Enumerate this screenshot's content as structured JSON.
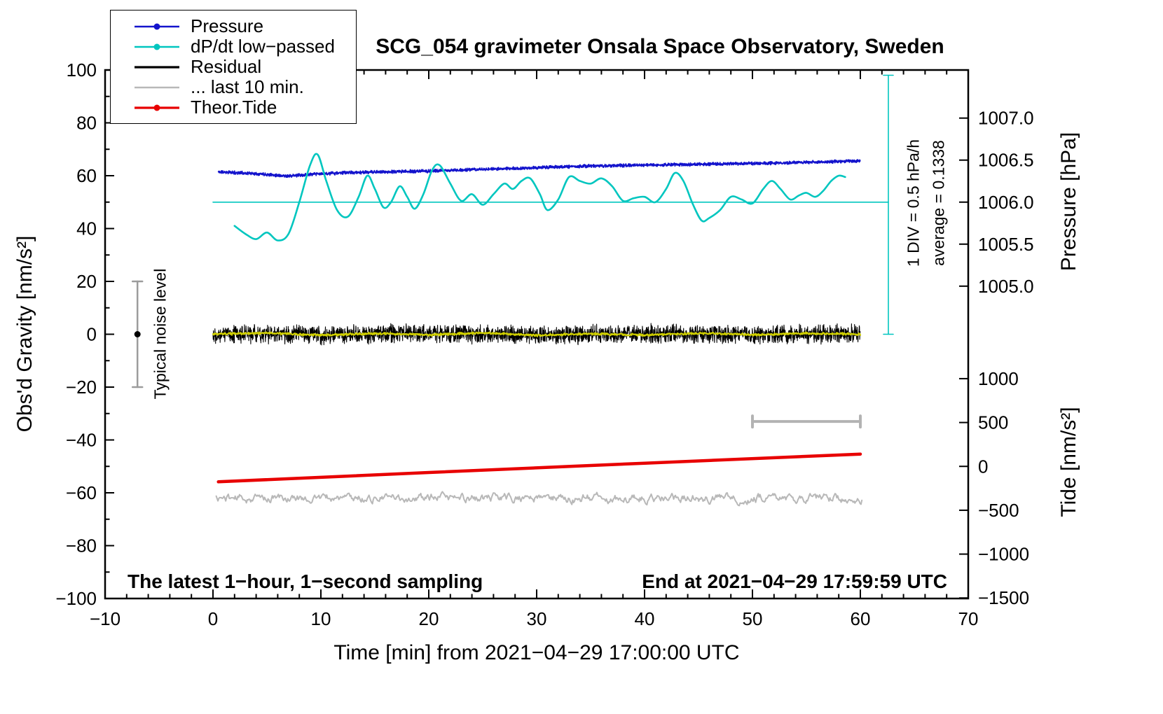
{
  "title": "SCG_054 gravimeter Onsala Space Observatory, Sweden",
  "annotations": {
    "noise_label": "Typical noise level",
    "div_label": "1 DIV = 0.5 hPa/h",
    "average_label": "average = 0.1338",
    "sampling_note": "The latest 1−hour, 1−second sampling",
    "end_note": "End at 2021−04−29 17:59:59 UTC"
  },
  "legend": [
    {
      "label": "Pressure",
      "color": "#1313cc",
      "marker": true,
      "lw": 2.6
    },
    {
      "label": "dP/dt low−passed",
      "color": "#00c6bf",
      "marker": true,
      "lw": 2.6
    },
    {
      "label": "Residual",
      "color": "#000000",
      "marker": false,
      "lw": 3.2
    },
    {
      "label": "... last 10 min.",
      "color": "#b8b8b8",
      "marker": false,
      "lw": 2.6
    },
    {
      "label": "Theor.Tide",
      "color": "#e80000",
      "marker": true,
      "lw": 3.2
    }
  ],
  "chart_data": {
    "type": "line",
    "x_axis": {
      "label": "Time [min] from 2021−04−29 17:00:00 UTC",
      "range": [
        -10,
        70
      ],
      "major_ticks": [
        -10,
        0,
        10,
        20,
        30,
        40,
        50,
        60,
        70
      ],
      "tick_labels": [
        "−10",
        "0",
        "10",
        "20",
        "30",
        "40",
        "50",
        "60",
        "70"
      ],
      "minor_step": 2
    },
    "gravity_axis": {
      "label": "Obs'd Gravity [nm/s²]",
      "range": [
        -100,
        100
      ],
      "major_ticks": [
        100,
        80,
        60,
        40,
        20,
        0,
        -20,
        -40,
        -60,
        -80,
        -100
      ],
      "tick_labels": [
        "100",
        "80",
        "60",
        "40",
        "20",
        "0",
        "−20",
        "−40",
        "−60",
        "−80",
        "−100"
      ],
      "minor_step": 10
    },
    "pressure_axis": {
      "label": "Pressure [hPa]",
      "unit": "hPa",
      "major_ticks": [
        1007.0,
        1006.5,
        1006.0,
        1005.5,
        1005.0
      ],
      "tick_labels": [
        "1007.0",
        "1006.5",
        "1006.0",
        "1005.5",
        "1005.0"
      ],
      "map": {
        "origin_value": 1006.0,
        "origin_gravity": 50,
        "gravity_per_unit": 31.8
      }
    },
    "tide_axis": {
      "label": "Tide [nm/s²]",
      "unit": "nm/s²",
      "major_ticks": [
        1000,
        500,
        0,
        -500,
        -1000,
        -1500
      ],
      "tick_labels": [
        "1000",
        "500",
        "0",
        "−500",
        "−1000",
        "−1500"
      ],
      "map": {
        "origin_value": 0,
        "origin_gravity": -50,
        "gravity_per_unit": 0.0332
      }
    },
    "series": [
      {
        "id": "pressure",
        "name": "Pressure",
        "axis": "pressure",
        "style": "noisy",
        "color": "#1313cc",
        "lw": 1.7,
        "noise": 0.022,
        "step": 0.02,
        "seed": 11,
        "x": [
          0.5,
          4,
          7,
          9,
          12,
          16,
          20,
          25,
          30,
          35,
          40,
          45,
          50,
          54,
          57,
          60
        ],
        "y": [
          1006.36,
          1006.34,
          1006.31,
          1006.33,
          1006.35,
          1006.36,
          1006.37,
          1006.39,
          1006.41,
          1006.43,
          1006.44,
          1006.45,
          1006.46,
          1006.47,
          1006.48,
          1006.49
        ]
      },
      {
        "id": "dpdt",
        "name": "dP/dt low−passed",
        "axis": "gravity",
        "style": "smooth",
        "color": "#00c6bf",
        "lw": 2.6,
        "x": [
          2,
          3,
          4,
          5,
          6,
          7,
          8,
          9,
          9.7,
          10.5,
          11.5,
          12.5,
          13.5,
          14.3,
          15,
          15.8,
          16.5,
          17.3,
          18,
          18.7,
          19.5,
          20.3,
          21,
          22,
          23,
          24,
          25,
          26,
          27,
          27.8,
          28.6,
          29.4,
          30.3,
          31,
          32,
          33,
          34,
          35,
          36,
          37,
          38,
          39,
          40,
          41,
          42,
          42.8,
          43.6,
          44.5,
          45.3,
          46,
          47,
          48,
          49,
          50,
          51,
          51.8,
          52.6,
          53.5,
          54.3,
          55,
          55.8,
          56.5,
          57.3,
          58,
          58.6
        ],
        "y": [
          41,
          38,
          36,
          38.5,
          35.5,
          38,
          50,
          64,
          68,
          58,
          47,
          44.5,
          52,
          60,
          55,
          48,
          50,
          56,
          52,
          47.5,
          53,
          62,
          64,
          57,
          50.5,
          53,
          49,
          53,
          57,
          55,
          58,
          59,
          53,
          47,
          51,
          59.5,
          58,
          57,
          59,
          56,
          50.5,
          51.5,
          52,
          50,
          55,
          61,
          58,
          49,
          43,
          44,
          47,
          52,
          51,
          49.5,
          55,
          58,
          55,
          51,
          52.5,
          53.5,
          52,
          54,
          58,
          60,
          59.5
        ]
      },
      {
        "id": "residual",
        "name": "Residual",
        "axis": "gravity",
        "style": "noisy",
        "color": "#000000",
        "lw": 1.1,
        "noise": 4.0,
        "step": 0.02,
        "seed": 22,
        "x": [
          0,
          10,
          20,
          30,
          40,
          50,
          60
        ],
        "y": [
          0.3,
          -0.2,
          0.4,
          -0.3,
          0.2,
          -0.2,
          0.3
        ]
      },
      {
        "id": "residual_smoothed",
        "name": "Residual smoothed",
        "axis": "gravity",
        "style": "noisy",
        "color": "#cfcf00",
        "lw": 2.2,
        "noise": 0.5,
        "step": 0.05,
        "seed": 33,
        "x": [
          0,
          5,
          10,
          15,
          20,
          25,
          30,
          35,
          40,
          45,
          50,
          55,
          60
        ],
        "y": [
          0,
          0.5,
          -0.4,
          0.3,
          -0.2,
          0.5,
          -0.4,
          0.2,
          -0.3,
          0.4,
          -0.2,
          0.3,
          0
        ]
      },
      {
        "id": "last10",
        "name": "... last 10 min.",
        "axis": "gravity",
        "style": "wander",
        "color": "#b8b8b8",
        "lw": 2.0,
        "base": -62,
        "amplitude": 1.6,
        "step": 0.08,
        "seed": 44,
        "x_range": [
          0.3,
          60.2
        ]
      },
      {
        "id": "tide",
        "name": "Theor.Tide",
        "axis": "tide",
        "style": "smooth",
        "color": "#e80000",
        "lw": 4.5,
        "x": [
          0.5,
          20,
          40,
          60
        ],
        "y": [
          -176,
          -70,
          36,
          140
        ]
      }
    ],
    "reference_marks": {
      "dpdt_zero_line": {
        "axis": "gravity",
        "value": 50,
        "x_start": 0,
        "x_end": 62.6,
        "color": "#00c6bf",
        "lw": 1.6
      },
      "div_scale_bar": {
        "x": 62.6,
        "g_start": 0,
        "g_end": 98,
        "color": "#00c6bf",
        "lw": 1.6,
        "cap": 7
      },
      "ten_min_scale_bar": {
        "x_start": 50,
        "x_end": 60,
        "g": -33,
        "color": "#b3b3b3",
        "lw": 4,
        "cap": 8
      },
      "noise_error_bar": {
        "x": -7,
        "g_start": -20,
        "g_end": 20,
        "color": "#9c9c9c",
        "lw": 2.5,
        "cap": 7,
        "dot_gravity": 0,
        "dot_color": "#000000",
        "dot_r": 4.5
      }
    }
  }
}
